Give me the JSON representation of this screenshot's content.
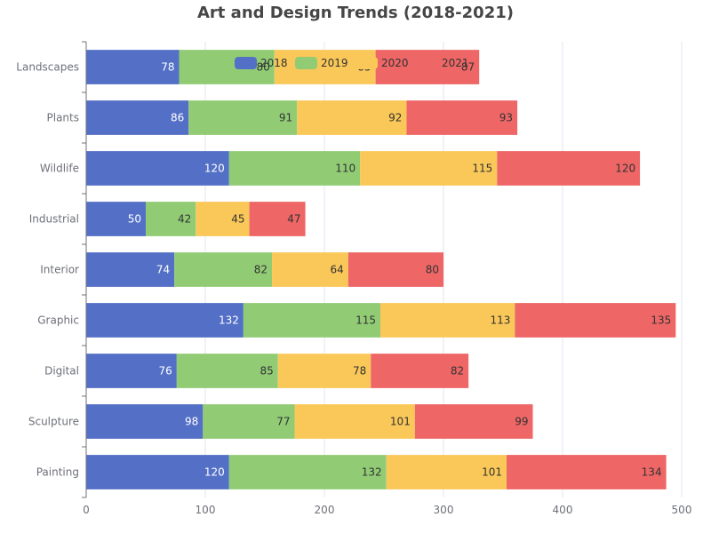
{
  "chart_data": {
    "type": "bar",
    "orientation": "horizontal",
    "stacked": true,
    "title": "Art and Design Trends (2018-2021)",
    "xlabel": "",
    "ylabel": "",
    "xlim": [
      0,
      500
    ],
    "x_ticks": [
      "0",
      "100",
      "200",
      "300",
      "400",
      "500"
    ],
    "grid": true,
    "legend_position": "top-center",
    "categories": [
      "Landscapes",
      "Plants",
      "Wildlife",
      "Industrial",
      "Interior",
      "Graphic",
      "Digital",
      "Sculpture",
      "Painting"
    ],
    "series": [
      {
        "name": "2018",
        "color": "#5470c6",
        "label_color": "#ffffff",
        "values": [
          78,
          86,
          120,
          50,
          74,
          132,
          76,
          98,
          120
        ]
      },
      {
        "name": "2019",
        "color": "#91cc75",
        "label_color": "#333333",
        "values": [
          80,
          91,
          110,
          42,
          82,
          115,
          85,
          77,
          132
        ]
      },
      {
        "name": "2020",
        "color": "#fac858",
        "label_color": "#333333",
        "values": [
          85,
          92,
          115,
          45,
          64,
          113,
          78,
          101,
          101
        ]
      },
      {
        "name": "2021",
        "color": "#ee6666",
        "label_color": "#333333",
        "values": [
          87,
          93,
          120,
          47,
          80,
          135,
          82,
          99,
          134
        ]
      }
    ]
  }
}
